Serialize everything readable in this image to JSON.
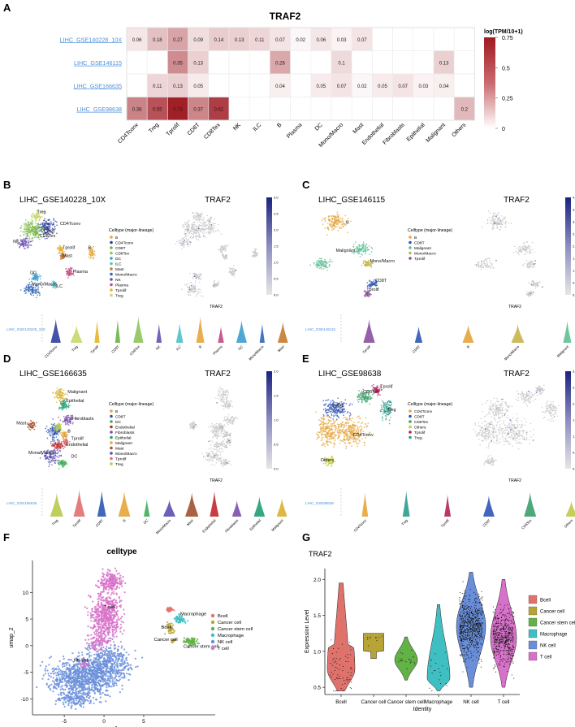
{
  "panels": {
    "A": "A",
    "B": "B",
    "C": "C",
    "D": "D",
    "E": "E",
    "F": "F",
    "G": "G"
  },
  "chart_data": [
    {
      "type": "heatmap",
      "title": "TRAF2",
      "legend_title": "log(TPM/10+1)",
      "legend_ticks": [
        "0.75",
        "0.5",
        "0.25",
        "0"
      ],
      "color_range": [
        0,
        0.75
      ],
      "colors": {
        "low": "#ffffff",
        "high": "#9e1a22"
      },
      "rows": [
        "LIHC_GSE140228_10X",
        "LIHC_GSE146115",
        "LIHC_GSE166635",
        "LIHC_GSE98638"
      ],
      "columns": [
        "CD4Tconv",
        "Treg",
        "Tprolif",
        "CD8T",
        "CD8Tex",
        "NK",
        "ILC",
        "B",
        "Plasma",
        "DC",
        "Mono/Macro",
        "Mast",
        "Endothelial",
        "Fibroblasts",
        "Epithelial",
        "Malignant",
        "Others"
      ],
      "values": [
        [
          0.06,
          0.18,
          0.27,
          0.09,
          0.14,
          0.13,
          0.11,
          0.07,
          0.02,
          0.06,
          0.03,
          0.07,
          null,
          null,
          null,
          null,
          null
        ],
        [
          null,
          null,
          0.35,
          0.13,
          null,
          null,
          null,
          0.26,
          null,
          null,
          0.1,
          null,
          null,
          null,
          null,
          0.13,
          null
        ],
        [
          null,
          0.11,
          0.13,
          0.05,
          null,
          null,
          null,
          0.04,
          null,
          0.05,
          0.07,
          0.02,
          0.05,
          0.07,
          0.03,
          0.04,
          null
        ],
        [
          0.38,
          0.55,
          0.73,
          0.37,
          0.62,
          null,
          null,
          null,
          null,
          null,
          null,
          null,
          null,
          null,
          null,
          null,
          0.2
        ]
      ]
    },
    {
      "type": "scatter",
      "panel": "B",
      "title": "LIHC_GSE140228_10X",
      "feature_title": "TRAF2",
      "feature_xlabel": "TRAF2",
      "legend_title": "Celltype (major-lineage)",
      "legend": [
        "B",
        "CD4Tconv",
        "CD8T",
        "CD8Tex",
        "DC",
        "ILC",
        "Mast",
        "Mono/Macro",
        "NK",
        "Plasma",
        "Tprolif",
        "Treg"
      ],
      "cluster_labels": [
        "Treg",
        "CD4Tconv",
        "CD8T",
        "CD8Tex",
        "NK",
        "Tprolif",
        "B",
        "Mast",
        "Plasma",
        "DC",
        "ILC",
        "Mono/Macro"
      ],
      "colorbar_ticks": [
        "3.0",
        "2.5",
        "2.0",
        "1.5",
        "1.0",
        "0.5",
        "0.0"
      ],
      "violin_dataset": "LIHC_GSE140228_10X",
      "violin_categories": [
        "CD4Tconv",
        "Treg",
        "Tprolif",
        "CD8T",
        "CD8Tex",
        "NK",
        "ILC",
        "B",
        "Plasma",
        "DC",
        "Mono/Macro",
        "Mast"
      ]
    },
    {
      "type": "scatter",
      "panel": "C",
      "title": "LIHC_GSE146115",
      "feature_title": "TRAF2",
      "feature_xlabel": "TRAF2",
      "legend_title": "Celltype (major-lineage)",
      "legend": [
        "B",
        "CD8T",
        "Malignant",
        "Mono/Macro",
        "Tprolif"
      ],
      "cluster_labels": [
        "B",
        "Malignant",
        "Mono/Macro",
        "CD8T",
        "Tprolif"
      ],
      "colorbar_ticks": [
        "4.0",
        "3.5",
        "3.0",
        "2.5",
        "2.0",
        "1.5",
        "1.0",
        "0.5",
        "0.0"
      ],
      "violin_dataset": "LIHC_GSE146115",
      "violin_categories": [
        "Tprolif",
        "CD8T",
        "B",
        "Mono/Macro",
        "Malignant"
      ]
    },
    {
      "type": "scatter",
      "panel": "D",
      "title": "LIHC_GSE166635",
      "feature_title": "TRAF2",
      "feature_xlabel": "TRAF2",
      "legend_title": "Celltype (major-lineage)",
      "legend": [
        "B",
        "CD8T",
        "DC",
        "Endothelial",
        "Fibroblasts",
        "Epithelial",
        "Malignant",
        "Mast",
        "Mono/Macro",
        "Tprolif",
        "Treg"
      ],
      "cluster_labels": [
        "Malignant",
        "Epithelial",
        "Fibroblasts",
        "Mast",
        "B",
        "Tprolif",
        "Endothelial",
        "Mono/Macro",
        "DC"
      ],
      "colorbar_ticks": [
        "2.0",
        "1.5",
        "1.0",
        "0.5",
        "0.0"
      ],
      "violin_dataset": "LIHC_GSE166635",
      "violin_categories": [
        "Treg",
        "Tprolif",
        "CD8T",
        "B",
        "DC",
        "Mono/Macro",
        "Mast",
        "Endothelial",
        "Fibroblasts",
        "Epithelial",
        "Malignant"
      ]
    },
    {
      "type": "scatter",
      "panel": "E",
      "title": "LIHC_GSE98638",
      "feature_title": "TRAF2",
      "feature_xlabel": "TRAF2",
      "legend_title": "Celltype (major-lineage)",
      "legend": [
        "CD4Tconv",
        "CD8T",
        "CD8Tex",
        "Others",
        "Tprolif",
        "Treg"
      ],
      "cluster_labels": [
        "Tprolif",
        "CD8Tex",
        "Treg",
        "CD8T",
        "CD4Tconv",
        "Others"
      ],
      "colorbar_ticks": [
        "3.0",
        "2.5",
        "2.0",
        "1.5",
        "1.0",
        "0.5",
        "0.0"
      ],
      "violin_dataset": "LIHC_GSE98638",
      "violin_categories": [
        "CD4Tconv",
        "Treg",
        "Tprolif",
        "CD8T",
        "CD8Tex",
        "Others"
      ]
    },
    {
      "type": "scatter",
      "panel": "F",
      "title": "celltype",
      "xlabel": "umap_1",
      "ylabel": "umap_2",
      "xlim": [
        -9,
        14
      ],
      "ylim": [
        -13,
        16
      ],
      "xticks": [
        -5,
        0,
        5
      ],
      "yticks": [
        -10,
        -5,
        0,
        5,
        10
      ],
      "legend": [
        "Bcell",
        "Cancer cell",
        "Cancer stem cell",
        "Macrophage",
        "NK cell",
        "T cell"
      ],
      "cluster_labels": [
        "T cell",
        "Macrophage",
        "Bcell",
        "Cancer cell",
        "Cancer stem cell",
        "NK cell"
      ]
    },
    {
      "type": "violin",
      "panel": "G",
      "title": "TRAF2",
      "xlabel": "Identity",
      "ylabel": "Expression Level",
      "categories": [
        "Bcell",
        "Cancer cell",
        "Cancer stem cell",
        "Macrophage",
        "NK cell",
        "T cell"
      ],
      "ylim": [
        0.4,
        2.15
      ],
      "yticks": [
        0.5,
        1.0,
        1.5,
        2.0
      ],
      "ranges": [
        [
          0.45,
          1.95
        ],
        [
          0.9,
          1.25
        ],
        [
          0.6,
          1.2
        ],
        [
          0.45,
          1.65
        ],
        [
          0.5,
          2.1
        ],
        [
          0.5,
          2.0
        ]
      ],
      "modes": [
        0.75,
        1.18,
        0.88,
        0.62,
        1.35,
        1.18
      ],
      "legend": [
        "Bcell",
        "Cancer cell",
        "Cancer stem cell",
        "Macrophage",
        "NK cell",
        "T cell"
      ]
    }
  ],
  "colors": {
    "Bcell": "#e0726c",
    "Cancer cell": "#b7a437",
    "Cancer stem cell": "#62b247",
    "Macrophage": "#40bfc2",
    "NK cell": "#6a8fda",
    "T cell": "#d771c9",
    "link": "#4a90d9"
  }
}
